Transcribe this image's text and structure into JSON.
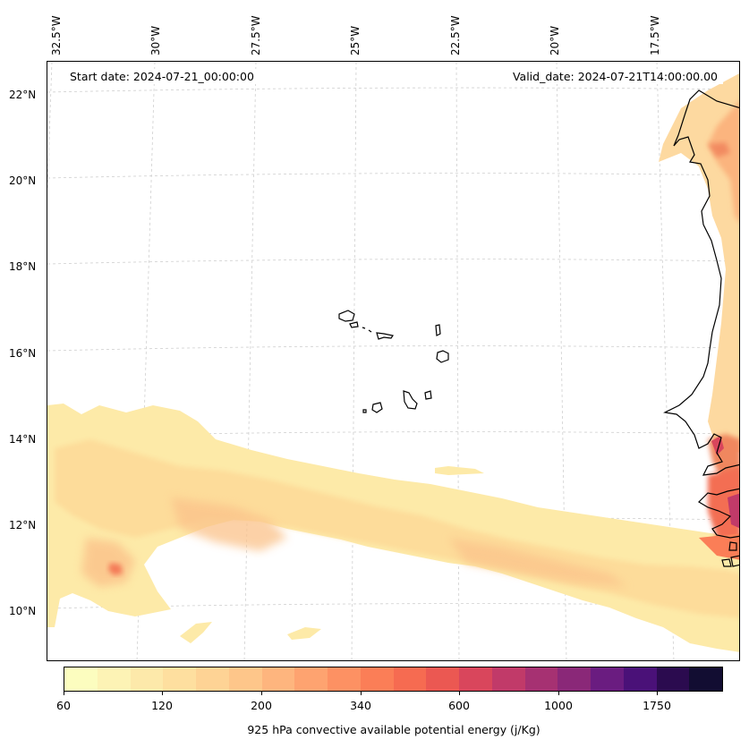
{
  "map": {
    "start_date": "Start date: 2024-07-21_00:00:00",
    "valid_date": "Valid_date: 2024-07-21T14:00:00.00",
    "longitude_labels": [
      "32.5°W",
      "30°W",
      "27.5°W",
      "25°W",
      "22.5°W",
      "20°W",
      "17.5°W"
    ],
    "latitude_labels": [
      "22°N",
      "20°N",
      "18°N",
      "16°N",
      "14°N",
      "12°N",
      "10°N"
    ]
  },
  "colorbar": {
    "title": "925 hPa convective available potential energy (j/Kg)",
    "tick_labels": [
      "60",
      "120",
      "200",
      "340",
      "600",
      "1000",
      "1750"
    ],
    "colors": [
      "#fcfdbf",
      "#fdf3b5",
      "#fde9aa",
      "#fedf9f",
      "#fed395",
      "#fec68a",
      "#feb57e",
      "#fea370",
      "#fd9163",
      "#fb7e57",
      "#f66b51",
      "#eb5852",
      "#d9465c",
      "#c13a69",
      "#a63172",
      "#8a2878",
      "#6a1c80",
      "#4a1178",
      "#2b0b4f",
      "#120d32"
    ]
  }
}
